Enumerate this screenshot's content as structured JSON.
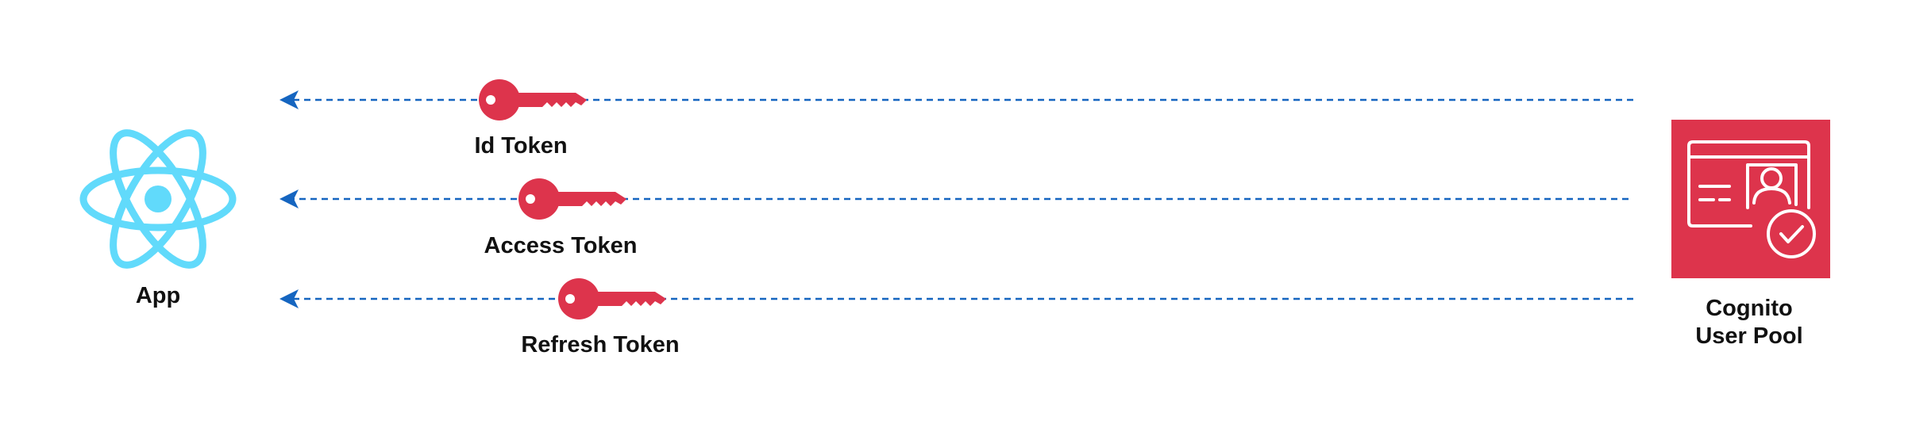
{
  "app": {
    "label": "App",
    "icon": "react-logo-icon",
    "color": "#61DAFB"
  },
  "user_pool": {
    "label_line1": "Cognito",
    "label_line2": "User Pool",
    "icon": "cognito-user-pool-icon",
    "color": "#DD344C"
  },
  "tokens": [
    {
      "label": "Id Token",
      "icon": "key-icon"
    },
    {
      "label": "Access Token",
      "icon": "key-icon"
    },
    {
      "label": "Refresh Token",
      "icon": "key-icon"
    }
  ],
  "arrows": {
    "color": "#1565C0",
    "style": "dashed",
    "direction": "Cognito User Pool to App"
  },
  "key_color": "#DD344C"
}
